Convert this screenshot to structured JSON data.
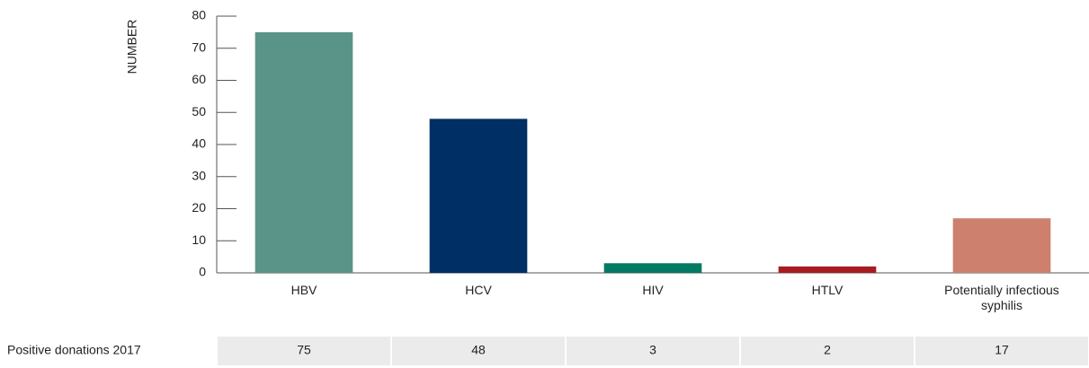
{
  "chart_data": {
    "type": "bar",
    "y_label": "NUMBER",
    "categories": [
      "HBV",
      "HCV",
      "HIV",
      "HTLV",
      "Potentially infectious syphilis"
    ],
    "values": [
      75,
      48,
      3,
      2,
      17
    ],
    "colors": [
      "#5a9488",
      "#002f65",
      "#007a62",
      "#a71c20",
      "#cc806d"
    ],
    "ylim": [
      0,
      80
    ],
    "yticks": [
      0,
      10,
      20,
      30,
      40,
      50,
      60,
      70,
      80
    ],
    "row_label": "Positive donations 2017"
  }
}
